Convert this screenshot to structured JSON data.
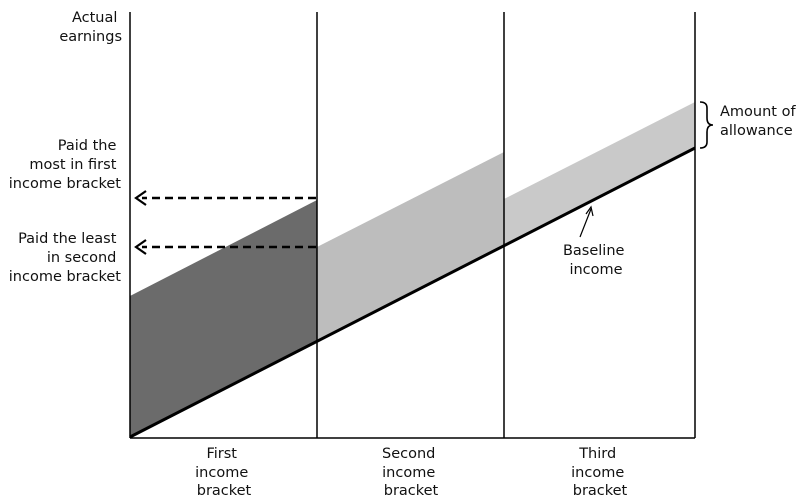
{
  "y_axis_label": [
    "Actual",
    "earnings"
  ],
  "annotations": {
    "paid_most": [
      "Paid the",
      "most in first",
      "income bracket"
    ],
    "paid_least": [
      "Paid the least",
      "in second",
      "income bracket"
    ],
    "amount_of_allowance": [
      "Amount of",
      "allowance"
    ],
    "baseline_income": [
      "Baseline",
      "income"
    ]
  },
  "brackets": [
    {
      "label": [
        "First",
        "income",
        "bracket"
      ],
      "fill": "#6b6b6b"
    },
    {
      "label": [
        "Second",
        "income",
        "bracket"
      ],
      "fill": "#bdbdbd"
    },
    {
      "label": [
        "Third",
        "income",
        "bracket"
      ],
      "fill": "#c9c9c9"
    }
  ],
  "colors": {
    "line": "#000000",
    "dark_band": "#6b6b6b",
    "light_band": "#bdbdbd"
  }
}
